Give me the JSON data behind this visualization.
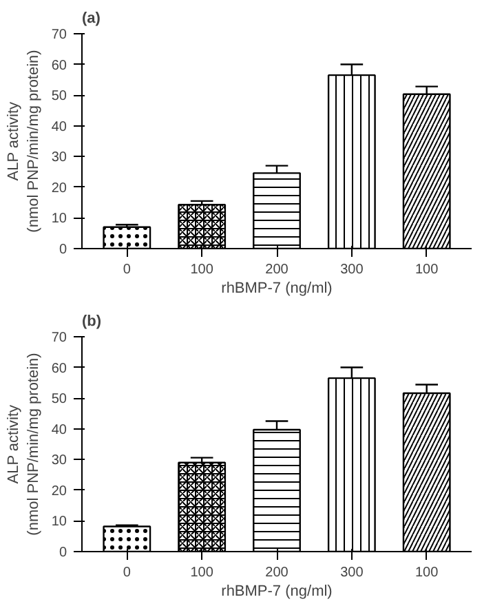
{
  "chart_data": [
    {
      "type": "bar",
      "title": "(a)",
      "xlabel": "rhBMP-7 (ng/ml)",
      "ylabel": "ALP activity\n(nmol PNP/min/mg protein)",
      "categories": [
        "0",
        "100",
        "200",
        "300",
        "100"
      ],
      "values": [
        7,
        14.3,
        24.6,
        56.5,
        50.3
      ],
      "color": "#ffffff",
      "errors": [
        [
          7,
          7.8
        ],
        [
          14.3,
          15.5
        ],
        [
          24.6,
          27
        ],
        [
          56.5,
          60
        ],
        [
          50.3,
          52.8
        ]
      ],
      "ylim": [
        0,
        70
      ],
      "yticks": [
        0,
        10,
        20,
        30,
        40,
        50,
        60,
        70
      ],
      "grid": false
    },
    {
      "type": "bar",
      "title": "(b)",
      "xlabel": "rhBMP-7 (ng/ml)",
      "ylabel": "ALP activity\n(nmol PNP/min/mg protein)",
      "categories": [
        "0",
        "100",
        "200",
        "300",
        "100"
      ],
      "values": [
        8.2,
        29,
        39.7,
        56.5,
        51.6
      ],
      "color": "#ffffff",
      "errors": [
        [
          8.2,
          8.6
        ],
        [
          29,
          30.6
        ],
        [
          39.7,
          42.5
        ],
        [
          56.5,
          60
        ],
        [
          51.6,
          54.4
        ]
      ],
      "ylim": [
        0,
        70
      ],
      "yticks": [
        0,
        10,
        20,
        30,
        40,
        50,
        60,
        70
      ],
      "grid": false
    }
  ]
}
